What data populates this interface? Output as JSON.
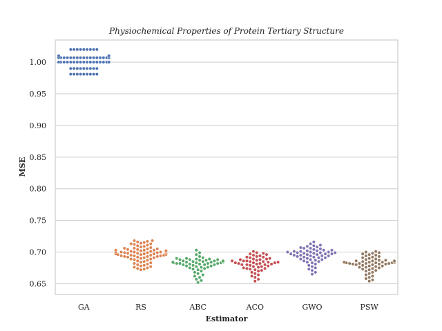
{
  "chart_data": {
    "type": "scatter",
    "subtype": "swarm",
    "title": "Physiochemical Properties of Protein Tertiary Structure",
    "xlabel": "Estimator",
    "ylabel": "MSE",
    "ylim": [
      0.633,
      1.035
    ],
    "yticks": [
      "0.65",
      "0.70",
      "0.75",
      "0.80",
      "0.85",
      "0.90",
      "0.95",
      "1.00"
    ],
    "grid": "horizontal",
    "categories": [
      "GA",
      "RS",
      "ABC",
      "ACO",
      "GWO",
      "PSW"
    ],
    "series": [
      {
        "category": "GA",
        "color": "#4c72b0",
        "values": [
          1.02,
          1.02,
          1.02,
          1.02,
          1.02,
          1.02,
          1.02,
          1.02,
          1.02,
          1.01,
          1.01,
          1.01,
          1.01,
          1.01,
          1.01,
          1.007,
          1.007,
          1.007,
          1.007,
          1.007,
          1.007,
          1.007,
          1.007,
          1.007,
          1.007,
          1.007,
          1.007,
          1.007,
          1.007,
          1.007,
          1.007,
          1.007,
          1.007,
          1.0,
          1.0,
          1.0,
          1.0,
          1.0,
          1.0,
          1.0,
          1.0,
          1.0,
          1.0,
          1.0,
          1.0,
          1.0,
          1.0,
          1.0,
          1.0,
          1.0,
          1.0,
          1.0,
          0.99,
          0.99,
          0.99,
          0.99,
          0.99,
          0.99,
          0.99,
          0.99,
          0.99,
          0.981,
          0.981,
          0.981,
          0.981,
          0.981,
          0.981,
          0.981,
          0.981,
          0.981
        ]
      },
      {
        "category": "RS",
        "color": "#dd8452",
        "values": [
          0.718,
          0.718,
          0.717,
          0.716,
          0.715,
          0.714,
          0.713,
          0.713,
          0.712,
          0.711,
          0.71,
          0.709,
          0.708,
          0.707,
          0.706,
          0.705,
          0.705,
          0.704,
          0.703,
          0.703,
          0.702,
          0.702,
          0.701,
          0.701,
          0.7,
          0.7,
          0.7,
          0.699,
          0.699,
          0.698,
          0.698,
          0.697,
          0.697,
          0.696,
          0.696,
          0.695,
          0.695,
          0.694,
          0.694,
          0.693,
          0.693,
          0.692,
          0.691,
          0.69,
          0.689,
          0.688,
          0.687,
          0.686,
          0.685,
          0.684,
          0.683,
          0.682,
          0.681,
          0.68,
          0.679,
          0.678,
          0.677,
          0.676,
          0.675,
          0.674,
          0.673,
          0.672,
          0.703,
          0.701,
          0.699,
          0.697,
          0.695,
          0.693,
          0.691,
          0.689,
          0.706,
          0.704,
          0.702,
          0.7,
          0.698,
          0.696,
          0.694,
          0.692,
          0.7,
          0.698
        ]
      },
      {
        "category": "ABC",
        "color": "#55a868",
        "values": [
          0.703,
          0.699,
          0.696,
          0.693,
          0.691,
          0.69,
          0.689,
          0.689,
          0.688,
          0.688,
          0.687,
          0.687,
          0.686,
          0.686,
          0.686,
          0.685,
          0.685,
          0.685,
          0.684,
          0.684,
          0.684,
          0.683,
          0.683,
          0.683,
          0.682,
          0.682,
          0.682,
          0.681,
          0.681,
          0.68,
          0.68,
          0.679,
          0.678,
          0.677,
          0.676,
          0.675,
          0.674,
          0.673,
          0.672,
          0.67,
          0.668,
          0.666,
          0.664,
          0.662,
          0.66,
          0.657,
          0.655,
          0.652,
          0.69,
          0.688,
          0.686,
          0.684,
          0.682,
          0.68,
          0.678,
          0.676
        ]
      },
      {
        "category": "ACO",
        "color": "#c44e52",
        "values": [
          0.701,
          0.699,
          0.698,
          0.697,
          0.696,
          0.695,
          0.694,
          0.693,
          0.692,
          0.691,
          0.69,
          0.689,
          0.688,
          0.688,
          0.687,
          0.686,
          0.686,
          0.685,
          0.685,
          0.684,
          0.684,
          0.683,
          0.683,
          0.682,
          0.682,
          0.681,
          0.681,
          0.68,
          0.68,
          0.679,
          0.678,
          0.677,
          0.676,
          0.675,
          0.674,
          0.673,
          0.672,
          0.671,
          0.67,
          0.668,
          0.666,
          0.664,
          0.662,
          0.66,
          0.657,
          0.654,
          0.692,
          0.689,
          0.686,
          0.683,
          0.68,
          0.677,
          0.674
        ]
      },
      {
        "category": "GWO",
        "color": "#8172b3",
        "values": [
          0.716,
          0.713,
          0.711,
          0.71,
          0.709,
          0.708,
          0.707,
          0.706,
          0.705,
          0.704,
          0.703,
          0.702,
          0.702,
          0.701,
          0.701,
          0.7,
          0.7,
          0.699,
          0.699,
          0.698,
          0.698,
          0.697,
          0.697,
          0.696,
          0.696,
          0.695,
          0.695,
          0.694,
          0.694,
          0.693,
          0.692,
          0.691,
          0.69,
          0.689,
          0.688,
          0.687,
          0.686,
          0.685,
          0.684,
          0.683,
          0.681,
          0.679,
          0.677,
          0.675,
          0.673,
          0.671,
          0.668,
          0.665,
          0.703,
          0.7,
          0.697,
          0.694,
          0.691,
          0.688,
          0.706,
          0.699,
          0.692
        ]
      },
      {
        "category": "PSW",
        "color": "#937860",
        "values": [
          0.701,
          0.7,
          0.699,
          0.698,
          0.697,
          0.696,
          0.695,
          0.694,
          0.693,
          0.692,
          0.691,
          0.69,
          0.689,
          0.688,
          0.687,
          0.687,
          0.686,
          0.686,
          0.685,
          0.685,
          0.685,
          0.684,
          0.684,
          0.684,
          0.683,
          0.683,
          0.683,
          0.682,
          0.682,
          0.682,
          0.681,
          0.681,
          0.68,
          0.679,
          0.678,
          0.677,
          0.676,
          0.675,
          0.674,
          0.673,
          0.672,
          0.671,
          0.67,
          0.668,
          0.666,
          0.664,
          0.662,
          0.66,
          0.658,
          0.656,
          0.654,
          0.686,
          0.684,
          0.682,
          0.68,
          0.678,
          0.676,
          0.685,
          0.683,
          0.681
        ]
      }
    ]
  }
}
